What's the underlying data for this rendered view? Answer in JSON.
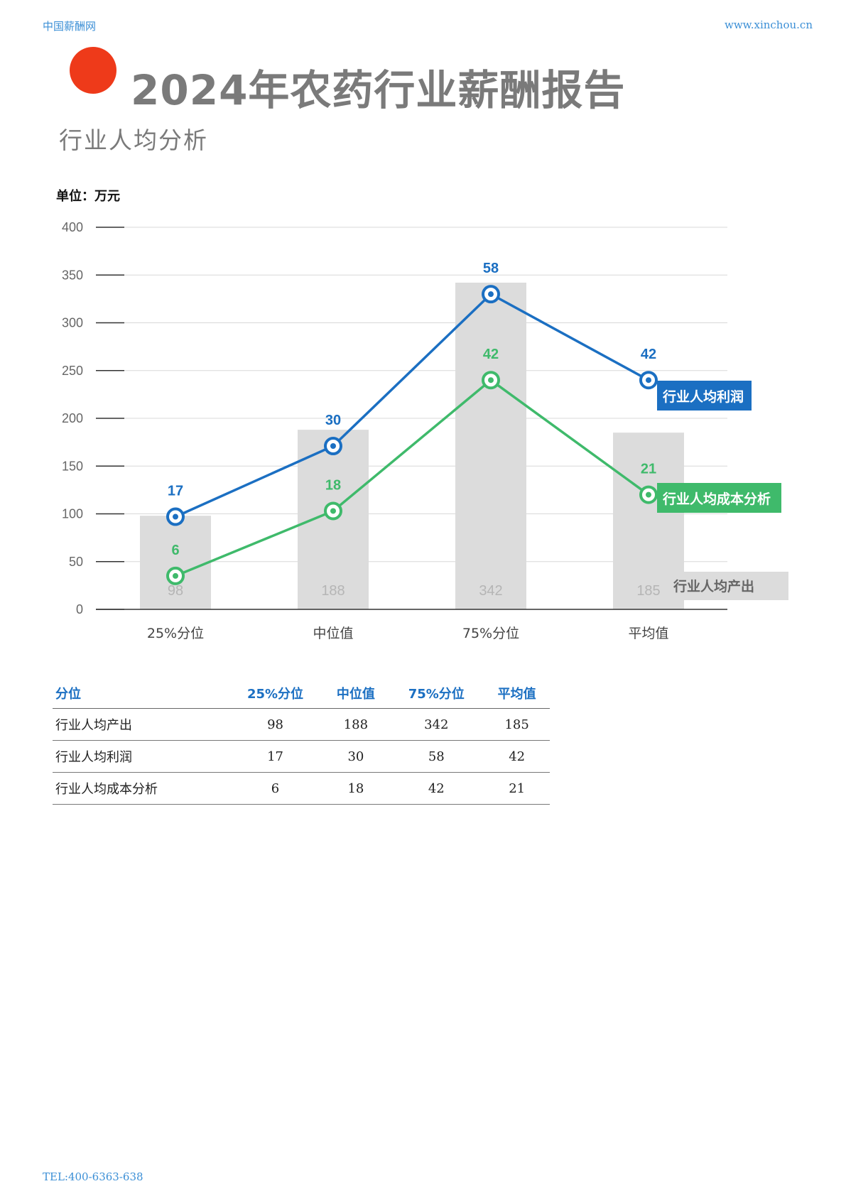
{
  "header": {
    "site_name": "中国薪酬网",
    "site_url": "www.xinchou.cn",
    "title": "2024年农药行业薪酬报告",
    "subtitle": "行业人均分析"
  },
  "unit_label": "单位：万元",
  "footer": {
    "tel": "TEL:400-6363-638"
  },
  "colors": {
    "accent_dot": "#ee3a1a",
    "profit": "#1b6fc2",
    "cost": "#3fba6b",
    "output_bar": "#dcdcdc"
  },
  "chart_data": {
    "type": "bar",
    "categories": [
      "25%分位",
      "中位值",
      "75%分位",
      "平均值"
    ],
    "ylim": [
      0,
      400
    ],
    "yticks": [
      0,
      50,
      100,
      150,
      200,
      250,
      300,
      350,
      400
    ],
    "grid": true,
    "series": [
      {
        "name": "行业人均产出",
        "type": "bar",
        "values": [
          98,
          188,
          342,
          185
        ]
      },
      {
        "name": "行业人均利润",
        "type": "line",
        "values": [
          17,
          30,
          58,
          42
        ],
        "plotted": [
          97,
          171,
          330,
          240
        ]
      },
      {
        "name": "行业人均成本分析",
        "type": "line",
        "values": [
          6,
          18,
          42,
          21
        ],
        "plotted": [
          35,
          103,
          240,
          120
        ]
      }
    ]
  },
  "table": {
    "headers": [
      "分位",
      "25%分位",
      "中位值",
      "75%分位",
      "平均值"
    ],
    "rows": [
      [
        "行业人均产出",
        "98",
        "188",
        "342",
        "185"
      ],
      [
        "行业人均利润",
        "17",
        "30",
        "58",
        "42"
      ],
      [
        "行业人均成本分析",
        "6",
        "18",
        "42",
        "21"
      ]
    ]
  }
}
